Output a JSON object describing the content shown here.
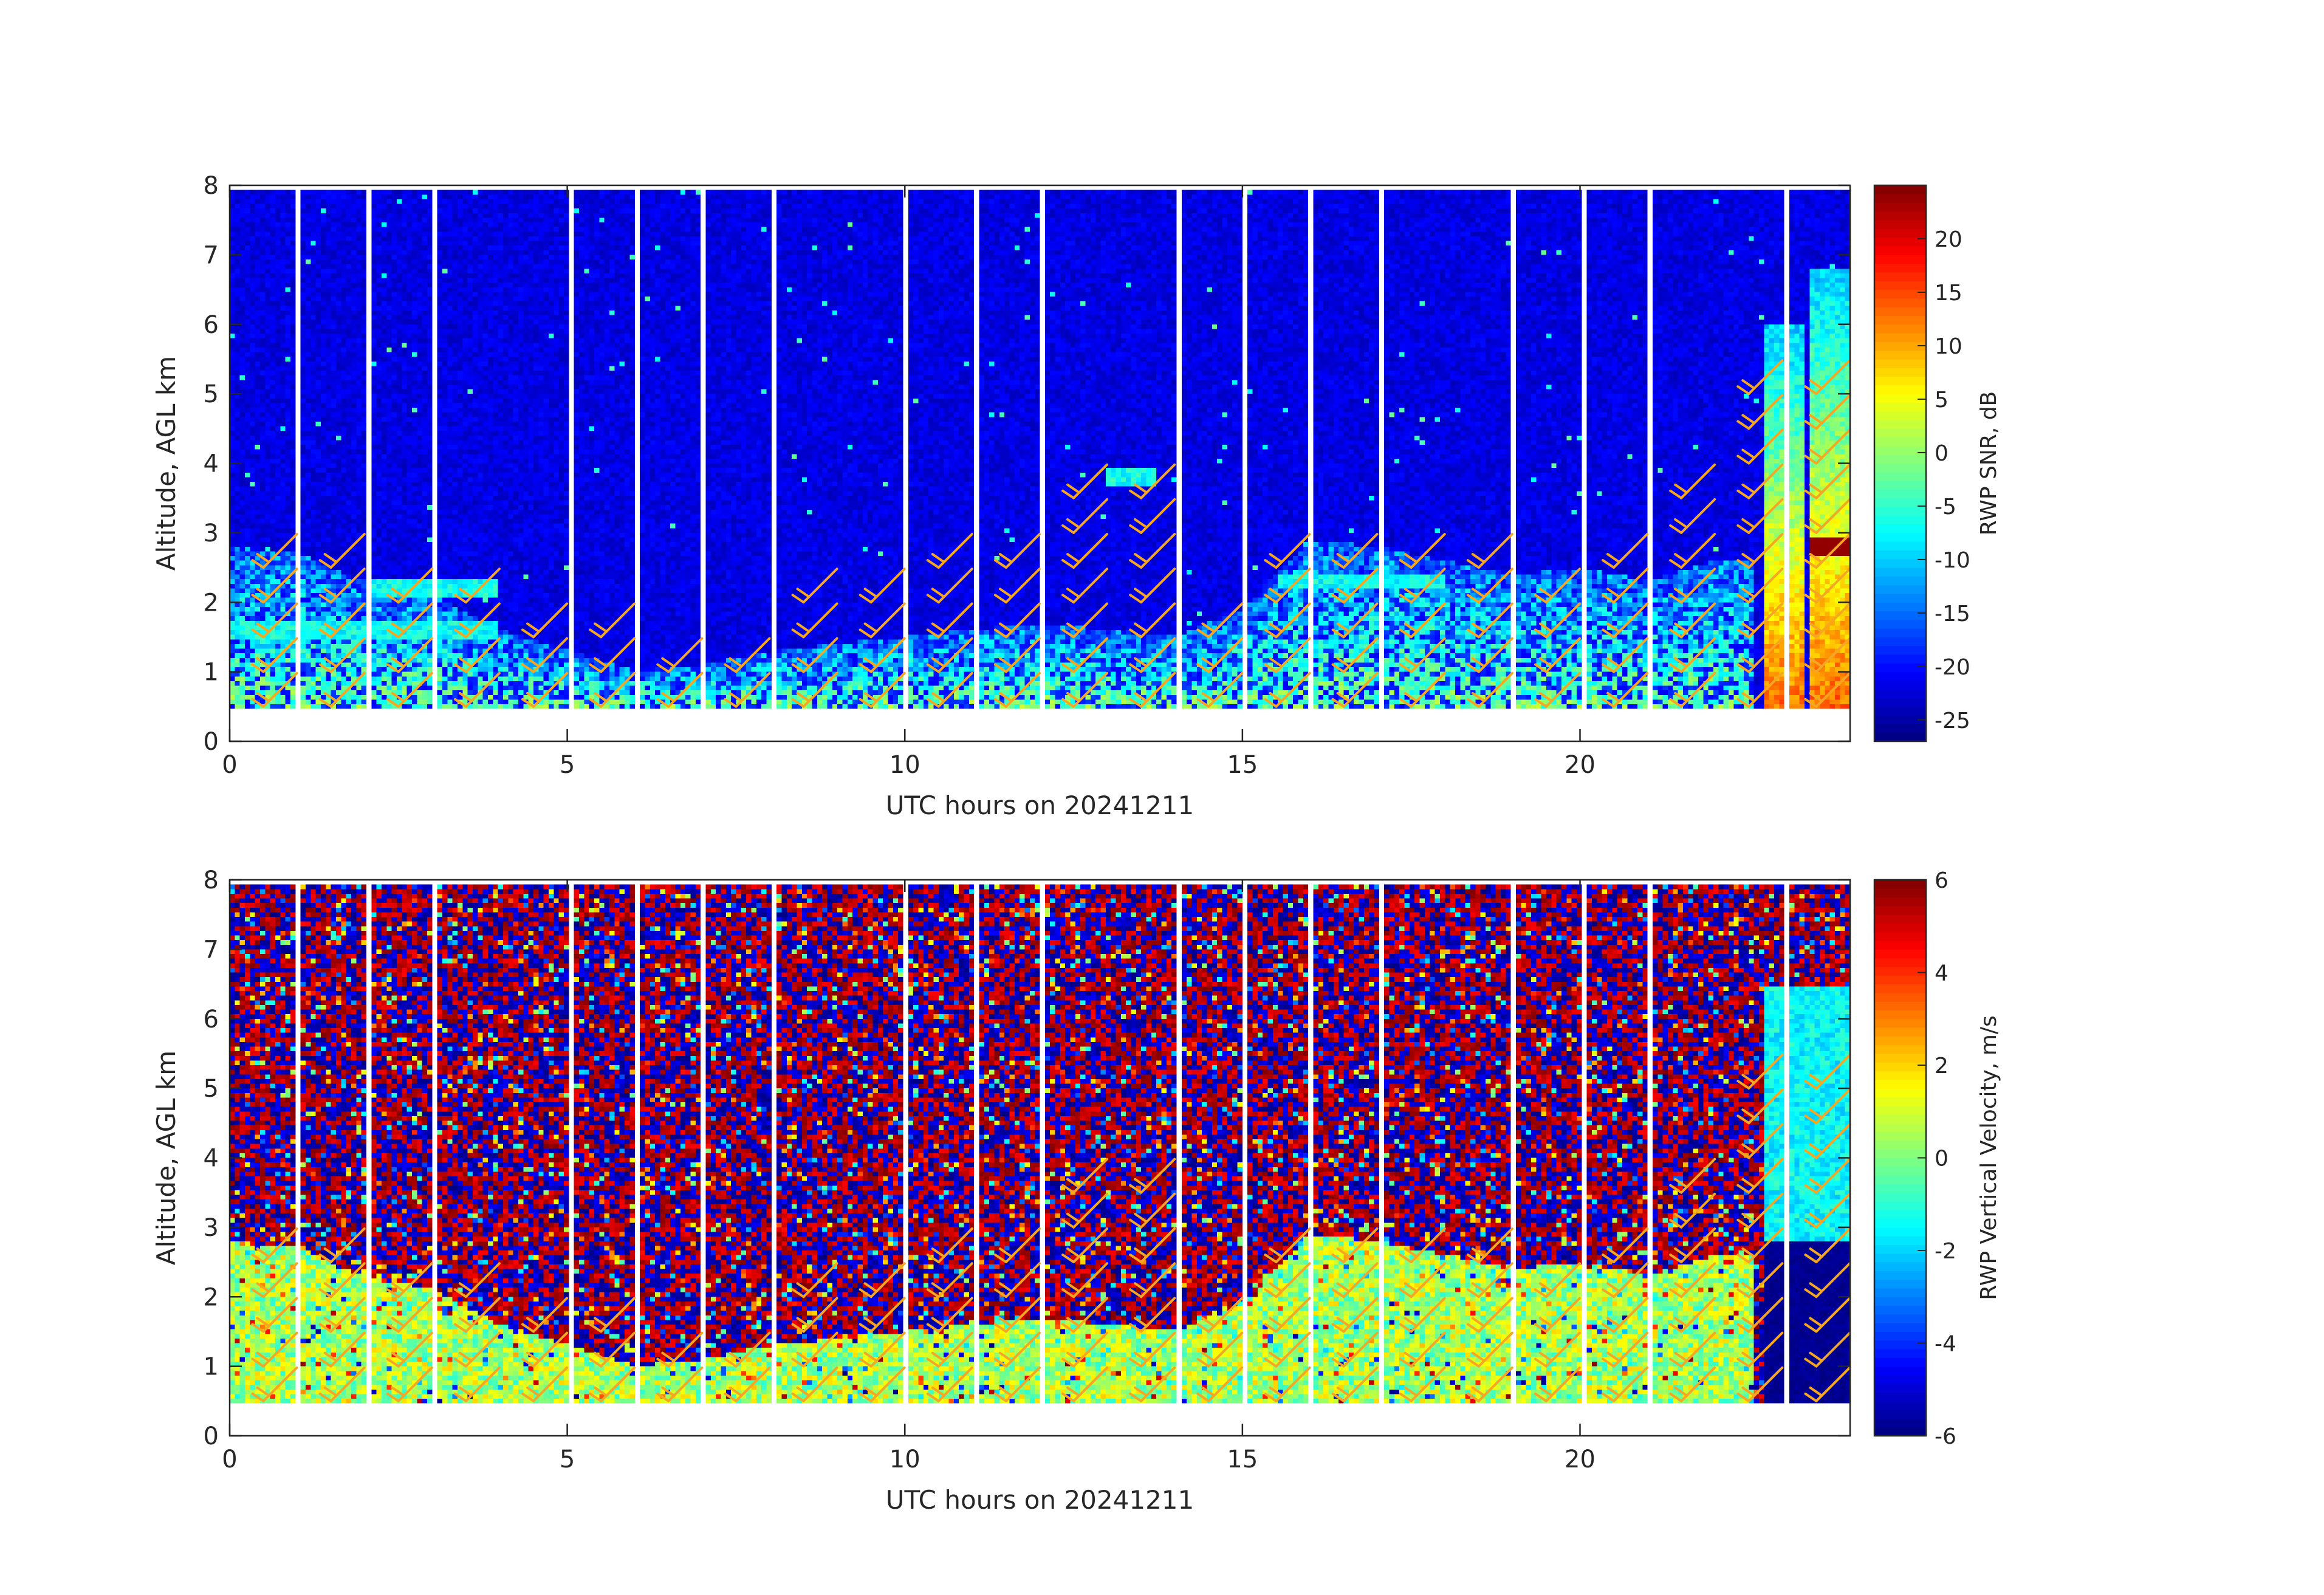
{
  "figure": {
    "background": "#ffffff",
    "barb_color": "#f5a623",
    "axis_color": "#262626"
  },
  "chart_data": [
    {
      "type": "heatmap",
      "panel": "top",
      "xlabel": "UTC hours on 20241211",
      "ylabel": "Altitude, AGL km",
      "xlim": [
        0,
        24
      ],
      "ylim": [
        0,
        8
      ],
      "xticks": [
        0,
        5,
        10,
        15,
        20
      ],
      "yticks": [
        0,
        1,
        2,
        3,
        4,
        5,
        6,
        7,
        8
      ],
      "grid": false,
      "colorbar": {
        "label": "RWP SNR, dB",
        "range": [
          -27,
          25
        ],
        "ticks": [
          20,
          15,
          10,
          5,
          0,
          -5,
          -10,
          -15,
          -20,
          -25
        ],
        "colormap": "jet"
      },
      "data_gap_below_km": 0.5,
      "top_of_data_km": 7.9,
      "white_gap_hours": [
        1,
        2,
        3,
        5,
        6,
        7,
        8,
        10,
        11,
        12,
        14,
        15,
        16,
        17,
        19,
        20,
        21,
        23
      ],
      "background_value_dB": -22,
      "boundary_layer_top_km": [
        [
          0,
          2.8
        ],
        [
          1,
          2.7
        ],
        [
          2,
          2.3
        ],
        [
          3,
          2.1
        ],
        [
          4,
          1.6
        ],
        [
          5,
          1.3
        ],
        [
          6,
          1.0
        ],
        [
          7,
          1.1
        ],
        [
          8,
          1.3
        ],
        [
          9,
          1.4
        ],
        [
          10,
          1.5
        ],
        [
          11,
          1.6
        ],
        [
          12,
          1.7
        ],
        [
          13,
          1.6
        ],
        [
          14,
          1.5
        ],
        [
          15,
          1.9
        ],
        [
          16,
          2.9
        ],
        [
          17,
          2.8
        ],
        [
          18,
          2.6
        ],
        [
          19,
          2.4
        ],
        [
          20,
          2.5
        ],
        [
          21,
          2.3
        ],
        [
          22,
          2.6
        ]
      ],
      "elevated_layers_km": [
        {
          "x": [
            0,
            4
          ],
          "altitude": 1.6
        },
        {
          "x": [
            2,
            4
          ],
          "altitude": 2.2
        },
        {
          "x": [
            13,
            13.7
          ],
          "altitude": 3.8
        },
        {
          "x": [
            15.5,
            18
          ],
          "altitude": 2.3
        }
      ],
      "precip_columns": [
        {
          "x": [
            22.7,
            23.3
          ],
          "top_km": 6.0,
          "peak_dB": 20
        },
        {
          "x": [
            23.4,
            24
          ],
          "top_km": 6.8,
          "peak_dB": 24,
          "bright_band_km": 2.8
        }
      ],
      "wind_barbs": {
        "hours": [
          0,
          1,
          2,
          3,
          4,
          5,
          6,
          7,
          8,
          9,
          10,
          11,
          12,
          13,
          14,
          15,
          16,
          17,
          18,
          19,
          20,
          21,
          22,
          23
        ],
        "altitudes_km": [
          0.5,
          1.0,
          1.5,
          2.0,
          2.5,
          3.0,
          3.5,
          4.0,
          4.5,
          5.0
        ],
        "direction_deg": 225,
        "typical_speed_kt": 25,
        "max_height_km": [
          2.8,
          2.7,
          2.3,
          2.2,
          1.6,
          1.5,
          1.0,
          1.2,
          2.2,
          2.2,
          2.6,
          2.6,
          3.6,
          3.6,
          1.7,
          2.6,
          2.6,
          2.6,
          2.6,
          2.3,
          2.6,
          3.6,
          5.0,
          5.0
        ]
      }
    },
    {
      "type": "heatmap",
      "panel": "bottom",
      "xlabel": "UTC hours on 20241211",
      "ylabel": "Altitude, AGL km",
      "xlim": [
        0,
        24
      ],
      "ylim": [
        0,
        8
      ],
      "xticks": [
        0,
        5,
        10,
        15,
        20
      ],
      "yticks": [
        0,
        1,
        2,
        3,
        4,
        5,
        6,
        7,
        8
      ],
      "grid": false,
      "colorbar": {
        "label": "RWP Vertical Velocity, m/s",
        "range": [
          -6,
          6
        ],
        "ticks": [
          6,
          4,
          2,
          0,
          -2,
          -4,
          -6
        ],
        "colormap": "jet"
      },
      "data_gap_below_km": 0.5,
      "top_of_data_km": 7.9,
      "white_gap_hours": [
        1,
        2,
        3,
        5,
        6,
        7,
        8,
        10,
        11,
        12,
        14,
        15,
        16,
        17,
        19,
        20,
        21,
        23
      ],
      "noise_range_ms": [
        -6,
        6
      ],
      "boundary_layer_value_ms": 0.5,
      "precip_region": {
        "x": [
          22.7,
          24
        ],
        "above_bright_band_ms": -1.5,
        "below_bright_band_ms": -6,
        "bright_band_km": 2.8
      },
      "wind_barbs": {
        "hours": [
          0,
          1,
          2,
          3,
          4,
          5,
          6,
          7,
          8,
          9,
          10,
          11,
          12,
          13,
          14,
          15,
          16,
          17,
          18,
          19,
          20,
          21,
          22,
          23
        ],
        "altitudes_km": [
          0.5,
          1.0,
          1.5,
          2.0,
          2.5,
          3.0,
          3.5,
          4.0,
          4.5,
          5.0
        ],
        "direction_deg": 225,
        "typical_speed_kt": 25,
        "max_height_km": [
          2.8,
          2.7,
          2.3,
          2.2,
          1.6,
          1.5,
          1.0,
          1.2,
          2.2,
          2.2,
          2.6,
          2.6,
          3.6,
          3.6,
          1.7,
          2.6,
          2.6,
          2.6,
          2.6,
          2.3,
          2.6,
          3.6,
          5.0,
          5.0
        ]
      }
    }
  ]
}
